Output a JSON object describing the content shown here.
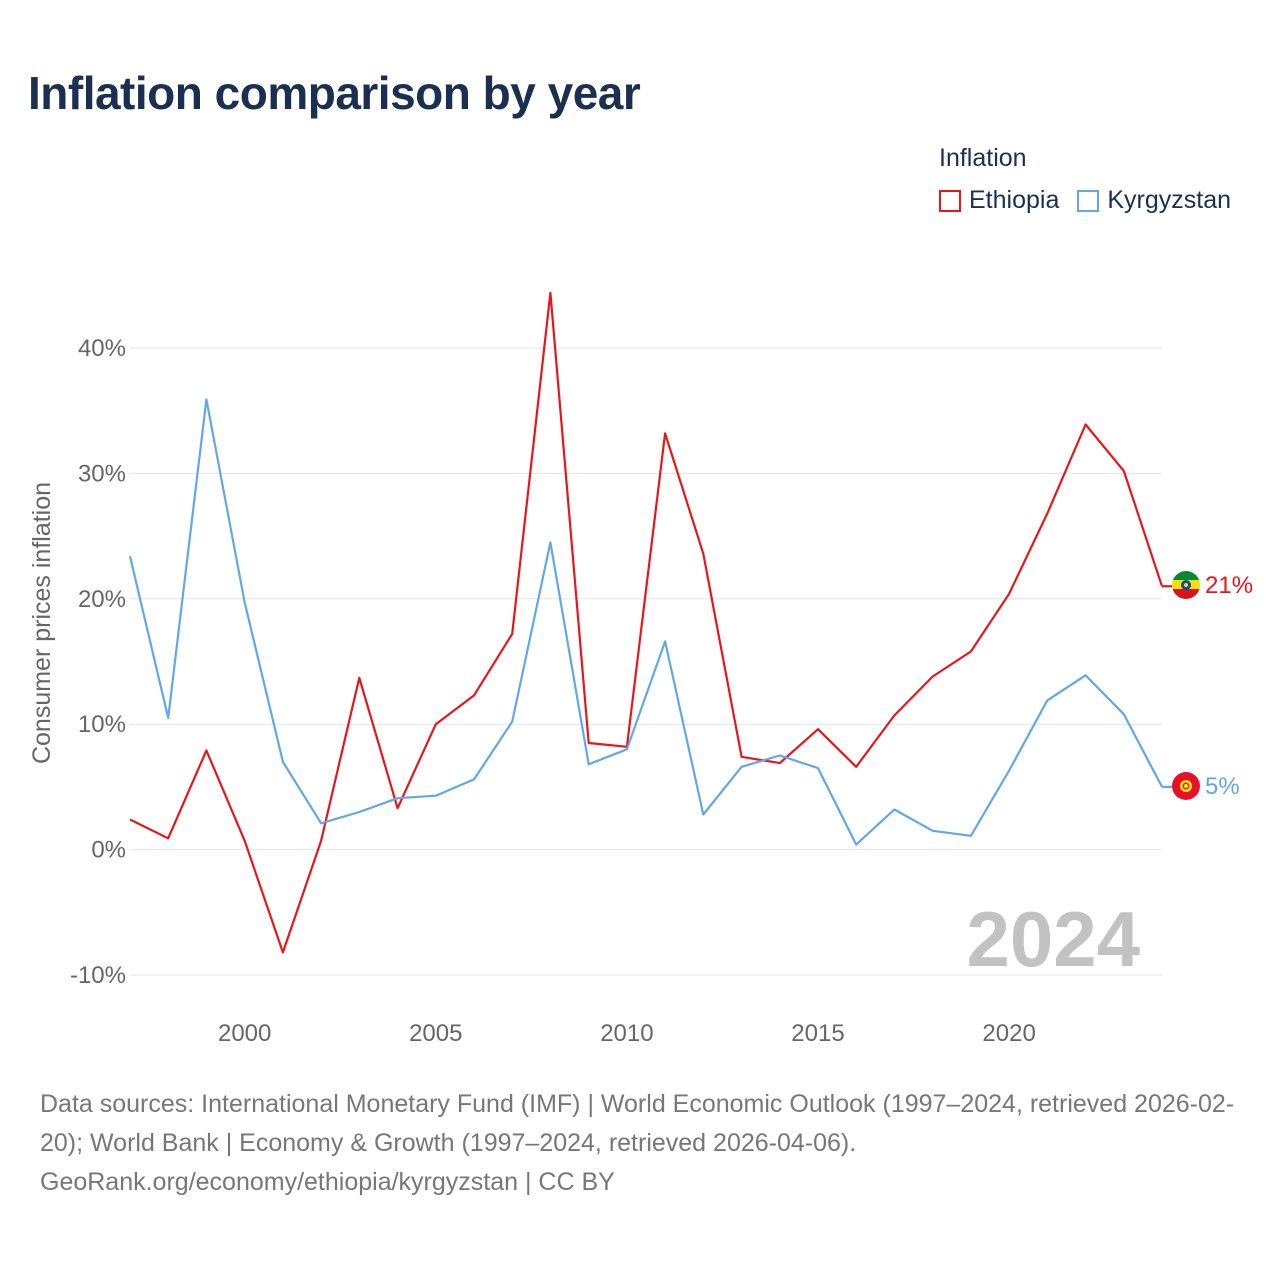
{
  "title": "Inflation comparison by year",
  "legend": {
    "title": "Inflation",
    "items": [
      {
        "label": "Ethiopia",
        "color": "#e8161b"
      },
      {
        "label": "Kyrgyzstan",
        "color": "#62a8e5"
      }
    ]
  },
  "chart_data": {
    "type": "line",
    "ylabel": "Consumer prices inflation",
    "xlabel": "",
    "xlim": [
      1997,
      2024
    ],
    "ylim": [
      -10,
      40
    ],
    "x_ticks": [
      2000,
      2005,
      2010,
      2015,
      2020
    ],
    "y_ticks": [
      -10,
      0,
      10,
      20,
      30,
      40
    ],
    "y_tick_labels": [
      "-10%",
      "0%",
      "10%",
      "20%",
      "30%",
      "40%"
    ],
    "watermark_year": "2024",
    "x": [
      1997,
      1998,
      1999,
      2000,
      2001,
      2002,
      2003,
      2004,
      2005,
      2006,
      2007,
      2008,
      2009,
      2010,
      2011,
      2012,
      2013,
      2014,
      2015,
      2016,
      2017,
      2018,
      2019,
      2020,
      2021,
      2022,
      2023,
      2024
    ],
    "series": [
      {
        "name": "Ethiopia",
        "color": "#e8161b",
        "end_label": "21%",
        "values": [
          2.4,
          0.9,
          7.9,
          0.7,
          -8.2,
          0.7,
          13.7,
          3.3,
          10.0,
          12.3,
          17.2,
          44.4,
          8.5,
          8.2,
          33.2,
          23.6,
          7.4,
          6.9,
          9.6,
          6.6,
          10.7,
          13.8,
          15.8,
          20.4,
          26.8,
          33.9,
          30.2,
          21.0
        ]
      },
      {
        "name": "Kyrgyzstan",
        "color": "#62a8e5",
        "end_label": "5%",
        "values": [
          23.4,
          10.5,
          35.9,
          19.7,
          7.0,
          2.1,
          3.0,
          4.1,
          4.3,
          5.6,
          10.2,
          24.5,
          6.8,
          8.0,
          16.6,
          2.8,
          6.6,
          7.5,
          6.5,
          0.4,
          3.2,
          1.5,
          1.1,
          6.3,
          11.9,
          13.9,
          10.8,
          5.0
        ]
      }
    ]
  },
  "sources": {
    "text": "Data sources: International Monetary Fund (IMF) | World Economic Outlook (1997–2024, retrieved 2026-02-20); World Bank | Economy & Growth (1997–2024, retrieved 2026-04-06).",
    "site": "GeoRank.org/economy/ethiopia/kyrgyzstan | CC BY"
  }
}
